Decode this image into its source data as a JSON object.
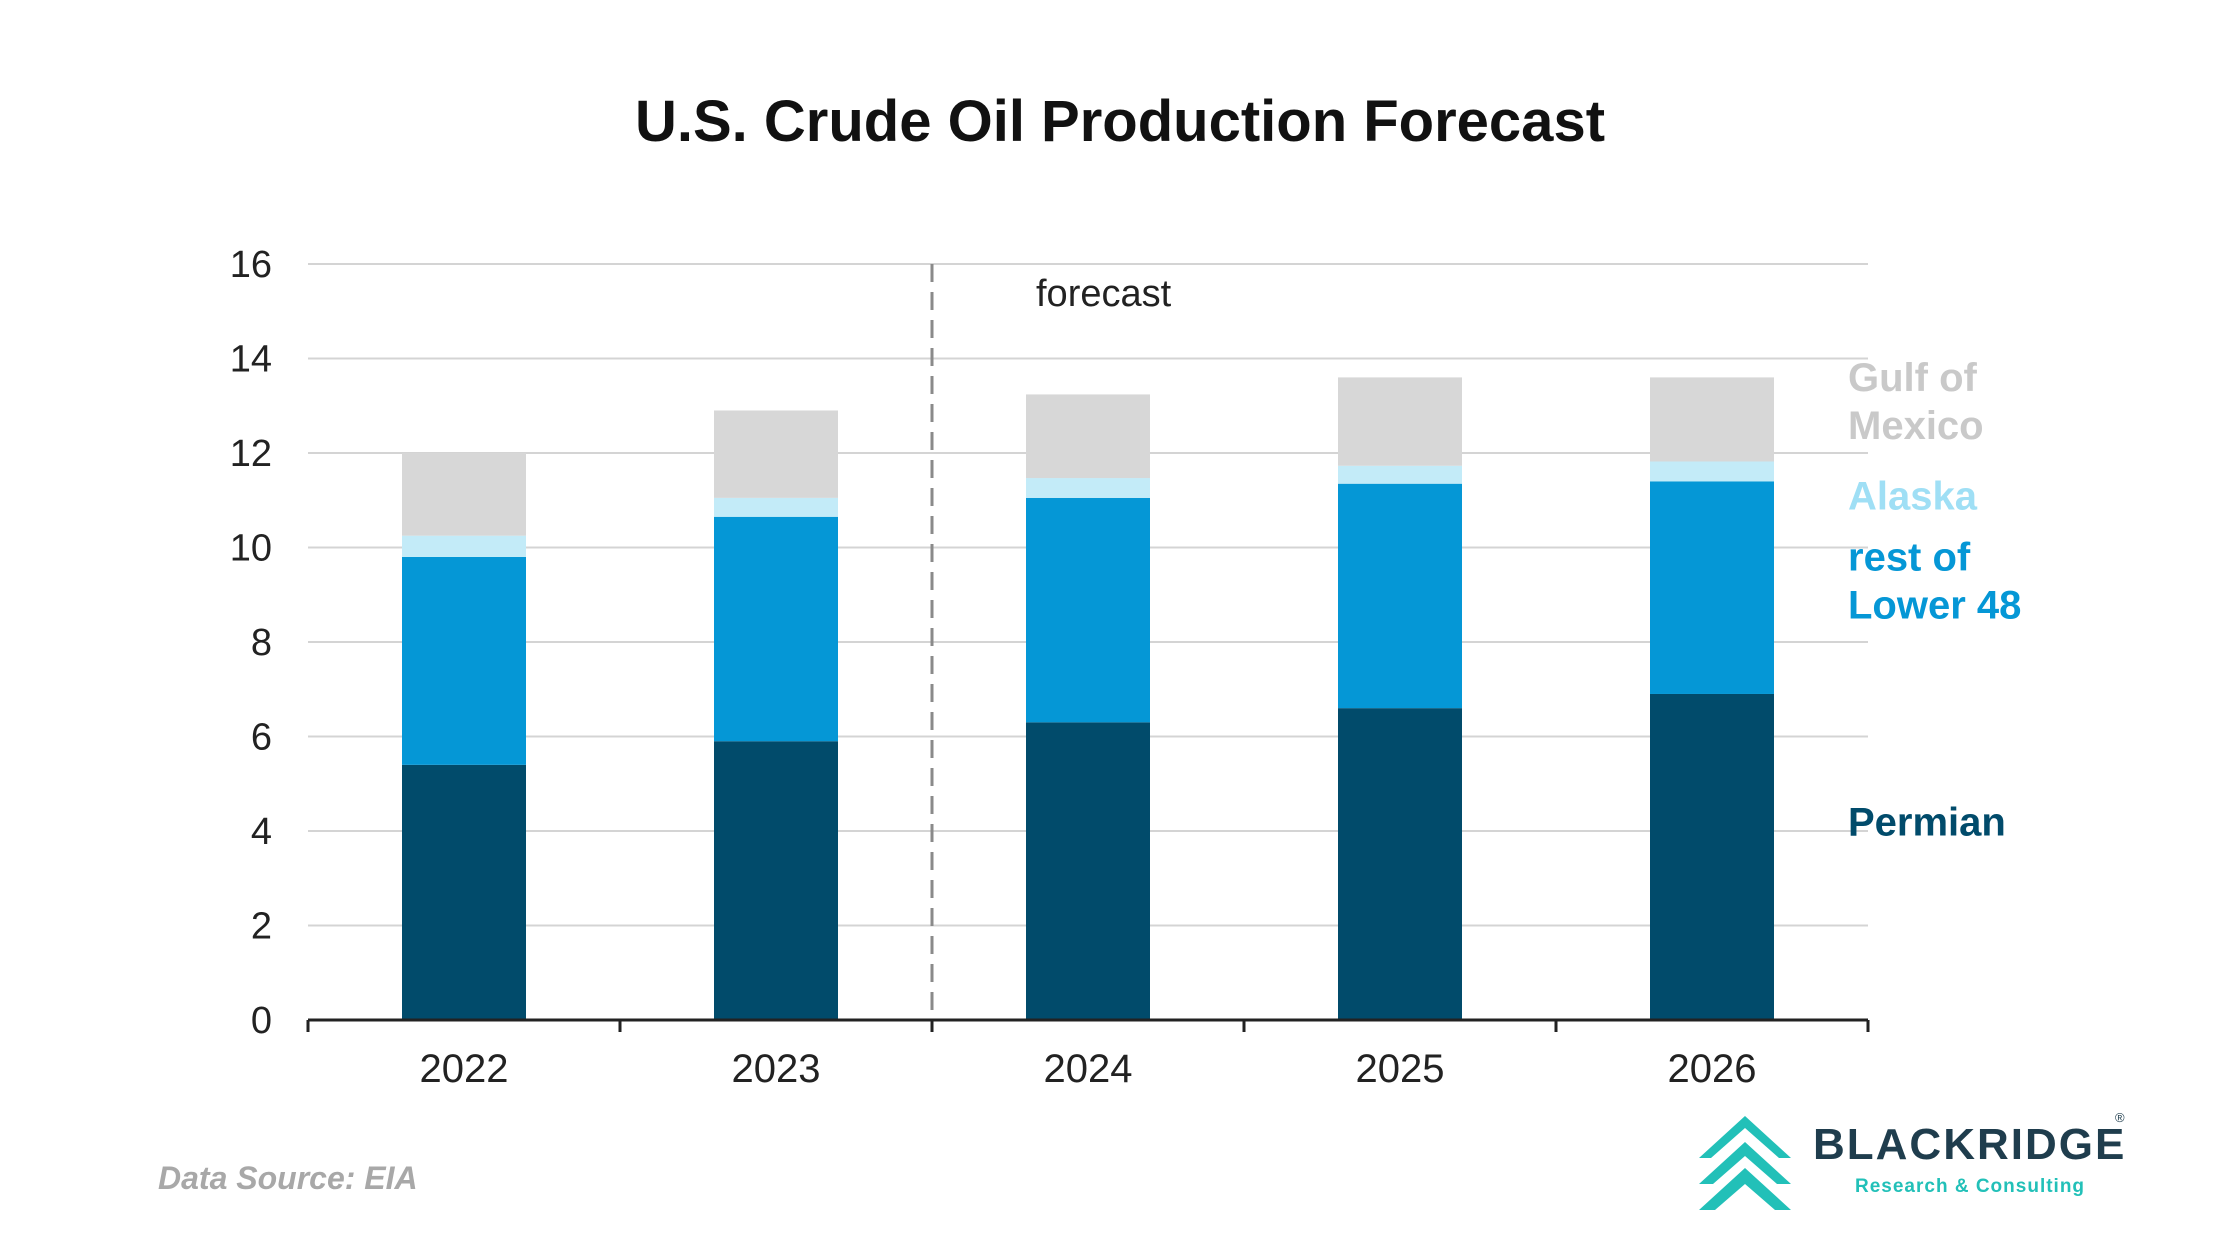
{
  "title": "U.S. Crude Oil Production Forecast",
  "source": "Data Source: EIA",
  "logo": {
    "name": "BLACKRIDGE",
    "tagline": "Research & Consulting",
    "registered": "®"
  },
  "colors": {
    "permian": "#014b6b",
    "rest_lower48": "#0597d6",
    "alaska": "#c3ebf8",
    "gulf": "#d7d7d7",
    "grid": "#d4d4d4",
    "axis": "#222222",
    "logo_teal": "#22c0b8",
    "logo_dark": "#1f3d4d"
  },
  "chart_data": {
    "type": "bar",
    "stacked": true,
    "categories": [
      "2022",
      "2023",
      "2024",
      "2025",
      "2026"
    ],
    "series": [
      {
        "name": "Permian",
        "values": [
          5.4,
          5.9,
          6.3,
          6.6,
          6.9
        ],
        "label_color": "#014b6b"
      },
      {
        "name": "rest of Lower 48",
        "values": [
          4.4,
          4.75,
          4.75,
          4.75,
          4.5
        ],
        "label_color": "#0597d6"
      },
      {
        "name": "Alaska",
        "values": [
          0.45,
          0.4,
          0.42,
          0.38,
          0.42
        ],
        "label_color": "#9fdff5"
      },
      {
        "name": "Gulf of Mexico",
        "values": [
          1.75,
          1.85,
          1.77,
          1.87,
          1.78
        ],
        "label_color": "#c9c9c9"
      }
    ],
    "ylim": [
      0,
      16
    ],
    "yticks": [
      0,
      2,
      4,
      6,
      8,
      10,
      12,
      14,
      16
    ],
    "grid": true,
    "legend": "right",
    "forecast_label": "forecast",
    "forecast_divider_after": "2023"
  }
}
